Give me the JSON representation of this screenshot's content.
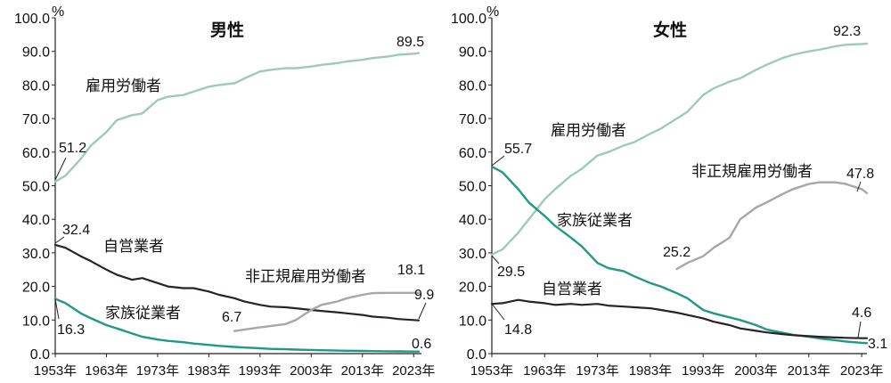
{
  "colors": {
    "employee": "#9ccbb6",
    "self_employed": "#2b2323",
    "family": "#1f9a84",
    "non_regular": "#a7a7a7",
    "axis": "#222222",
    "text": "#111111"
  },
  "chart_data": [
    {
      "type": "line",
      "title": "男性",
      "unit": "%",
      "ylim": [
        0,
        100
      ],
      "yticks": [
        "0.0",
        "10.0",
        "20.0",
        "30.0",
        "40.0",
        "50.0",
        "60.0",
        "70.0",
        "80.0",
        "90.0",
        "100.0"
      ],
      "xticks": [
        "1953年",
        "1963年",
        "1973年",
        "1983年",
        "1993年",
        "2003年",
        "2013年",
        "2023年"
      ],
      "xrange": [
        1953,
        2024
      ],
      "series": [
        {
          "key": "employee",
          "name": "雇用労働者",
          "colorKey": "employee",
          "x": [
            1953,
            1955,
            1958,
            1960,
            1963,
            1965,
            1968,
            1970,
            1973,
            1975,
            1978,
            1980,
            1983,
            1985,
            1988,
            1990,
            1993,
            1995,
            1998,
            2000,
            2003,
            2005,
            2008,
            2010,
            2013,
            2015,
            2018,
            2020,
            2023,
            2024
          ],
          "y": [
            51.2,
            53,
            58,
            62,
            66,
            69.5,
            71,
            71.5,
            75.5,
            76.5,
            77,
            78,
            79.5,
            80,
            80.5,
            82,
            84,
            84.5,
            85,
            85,
            85.5,
            86,
            86.5,
            87,
            87.5,
            88,
            88.5,
            89,
            89.3,
            89.5
          ]
        },
        {
          "key": "self_employed",
          "name": "自営業者",
          "colorKey": "self_employed",
          "x": [
            1953,
            1955,
            1958,
            1960,
            1963,
            1965,
            1968,
            1970,
            1973,
            1975,
            1978,
            1980,
            1983,
            1985,
            1988,
            1990,
            1993,
            1995,
            1998,
            2000,
            2003,
            2005,
            2008,
            2010,
            2013,
            2015,
            2018,
            2020,
            2023,
            2024
          ],
          "y": [
            32.4,
            31.5,
            29,
            27.5,
            25,
            23.5,
            22,
            22.5,
            21,
            20,
            19.5,
            19.5,
            18.5,
            17.5,
            16.5,
            15.5,
            14.5,
            14,
            13.8,
            13.5,
            13,
            12.7,
            12.3,
            12,
            11.5,
            11,
            10.7,
            10.3,
            10,
            9.9
          ]
        },
        {
          "key": "family",
          "name": "家族従業者",
          "colorKey": "family",
          "x": [
            1953,
            1955,
            1958,
            1960,
            1963,
            1965,
            1968,
            1970,
            1973,
            1975,
            1978,
            1980,
            1983,
            1985,
            1988,
            1990,
            1993,
            1995,
            1998,
            2000,
            2003,
            2005,
            2008,
            2010,
            2013,
            2015,
            2018,
            2020,
            2023,
            2024
          ],
          "y": [
            16.3,
            15,
            12,
            10.5,
            8.5,
            7.5,
            6,
            5,
            4.2,
            3.8,
            3.4,
            3,
            2.6,
            2.3,
            2,
            1.8,
            1.6,
            1.4,
            1.3,
            1.2,
            1.1,
            1.0,
            0.9,
            0.85,
            0.8,
            0.75,
            0.7,
            0.65,
            0.6,
            0.6
          ]
        },
        {
          "key": "non_regular",
          "name": "非正規雇用労働者",
          "colorKey": "non_regular",
          "x": [
            1988,
            1990,
            1993,
            1995,
            1998,
            2000,
            2003,
            2005,
            2008,
            2010,
            2013,
            2015,
            2018,
            2020,
            2023,
            2024
          ],
          "y": [
            6.7,
            7.2,
            7.8,
            8.2,
            8.8,
            10,
            13,
            14.5,
            15.5,
            16.5,
            17.5,
            18,
            18.1,
            18.1,
            18.1,
            18.1
          ]
        }
      ],
      "annotations": [
        {
          "text": "51.2"
        },
        {
          "text": "89.5"
        },
        {
          "text": "32.4"
        },
        {
          "text": "9.9"
        },
        {
          "text": "16.3"
        },
        {
          "text": "0.6"
        },
        {
          "text": "6.7"
        },
        {
          "text": "18.1"
        }
      ]
    },
    {
      "type": "line",
      "title": "女性",
      "unit": "%",
      "ylim": [
        0,
        100
      ],
      "yticks": [
        "0.0",
        "10.0",
        "20.0",
        "30.0",
        "40.0",
        "50.0",
        "60.0",
        "70.0",
        "80.0",
        "90.0",
        "100.0"
      ],
      "xticks": [
        "1953年",
        "1963年",
        "1973年",
        "1983年",
        "1993年",
        "2003年",
        "2013年",
        "2023年"
      ],
      "xrange": [
        1953,
        2024
      ],
      "series": [
        {
          "key": "employee",
          "name": "雇用労働者",
          "colorKey": "employee",
          "x": [
            1953,
            1955,
            1958,
            1960,
            1963,
            1965,
            1968,
            1970,
            1973,
            1975,
            1978,
            1980,
            1983,
            1985,
            1988,
            1990,
            1993,
            1995,
            1998,
            2000,
            2003,
            2005,
            2008,
            2010,
            2013,
            2015,
            2018,
            2020,
            2023,
            2024
          ],
          "y": [
            29.5,
            31,
            36,
            40,
            46,
            49,
            53,
            55,
            59,
            60,
            62,
            63,
            65.5,
            67,
            70,
            72,
            77,
            79,
            81,
            82,
            84.5,
            86,
            88,
            89,
            90,
            90.5,
            91.5,
            92,
            92.2,
            92.3
          ]
        },
        {
          "key": "family",
          "name": "家族従業者",
          "colorKey": "family",
          "x": [
            1953,
            1955,
            1958,
            1960,
            1963,
            1965,
            1968,
            1970,
            1973,
            1975,
            1978,
            1980,
            1983,
            1985,
            1988,
            1990,
            1993,
            1995,
            1998,
            2000,
            2003,
            2005,
            2008,
            2010,
            2013,
            2015,
            2018,
            2020,
            2023,
            2024
          ],
          "y": [
            55.7,
            54,
            49,
            45,
            41,
            38,
            34.5,
            32,
            27,
            25.5,
            24.5,
            23,
            21,
            20,
            18,
            16.5,
            13,
            12,
            10.8,
            10,
            8.5,
            7.2,
            6.2,
            5.6,
            5,
            4.5,
            4,
            3.6,
            3.2,
            3.1
          ]
        },
        {
          "key": "self_employed",
          "name": "自営業者",
          "colorKey": "self_employed",
          "x": [
            1953,
            1955,
            1958,
            1960,
            1963,
            1965,
            1968,
            1970,
            1973,
            1975,
            1978,
            1980,
            1983,
            1985,
            1988,
            1990,
            1993,
            1995,
            1998,
            2000,
            2003,
            2005,
            2008,
            2010,
            2013,
            2015,
            2018,
            2020,
            2023,
            2024
          ],
          "y": [
            14.8,
            15,
            16,
            15.5,
            15,
            14.5,
            14.8,
            14.5,
            14.8,
            14.3,
            14,
            13.8,
            13.5,
            13,
            12.2,
            11.5,
            10.5,
            9.5,
            8.5,
            7.5,
            6.8,
            6.3,
            5.8,
            5.5,
            5.2,
            5,
            4.8,
            4.7,
            4.6,
            4.6
          ]
        },
        {
          "key": "non_regular",
          "name": "非正規雇用労働者",
          "colorKey": "non_regular",
          "x": [
            1988,
            1990,
            1993,
            1995,
            1998,
            2000,
            2003,
            2005,
            2008,
            2010,
            2013,
            2015,
            2018,
            2020,
            2023,
            2024
          ],
          "y": [
            25.2,
            27,
            29,
            31.5,
            34.5,
            40,
            43.5,
            45,
            47.5,
            49,
            50.5,
            51,
            51,
            50.5,
            49,
            47.8
          ]
        }
      ],
      "annotations": [
        {
          "text": "29.5"
        },
        {
          "text": "92.3"
        },
        {
          "text": "55.7"
        },
        {
          "text": "3.1"
        },
        {
          "text": "14.8"
        },
        {
          "text": "4.6"
        },
        {
          "text": "25.2"
        },
        {
          "text": "47.8"
        }
      ]
    }
  ]
}
